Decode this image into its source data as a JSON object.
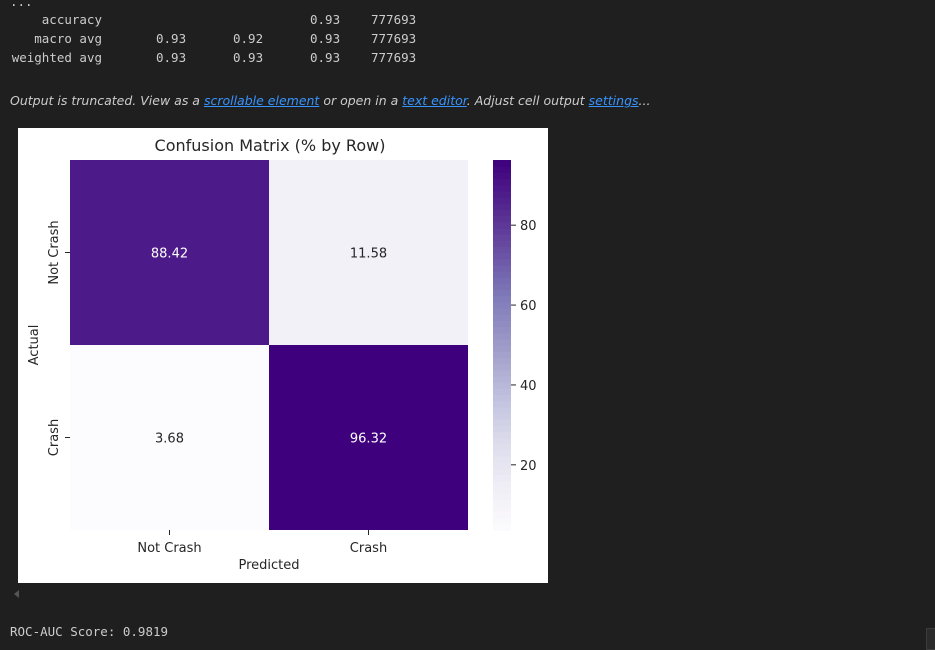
{
  "report": {
    "ellipsis": "...",
    "rows": [
      {
        "label": "accuracy",
        "precision": "",
        "recall": "",
        "f1": "0.93",
        "support": "777693"
      },
      {
        "label": "macro avg",
        "precision": "0.93",
        "recall": "0.92",
        "f1": "0.93",
        "support": "777693"
      },
      {
        "label": "weighted avg",
        "precision": "0.93",
        "recall": "0.93",
        "f1": "0.93",
        "support": "777693"
      }
    ]
  },
  "truncation": {
    "prefix": "Output is truncated. View as a ",
    "link1": "scrollable element",
    "middle": " or open in a ",
    "link2": "text editor",
    "middle2": ". Adjust cell output ",
    "link3": "settings",
    "suffix": "..."
  },
  "chart_data": {
    "type": "heatmap",
    "title": "Confusion Matrix (% by Row)",
    "xlabel": "Predicted",
    "ylabel": "Actual",
    "x_categories": [
      "Not Crash",
      "Crash"
    ],
    "y_categories": [
      "Not Crash",
      "Crash"
    ],
    "values": [
      [
        88.42,
        11.58
      ],
      [
        3.68,
        96.32
      ]
    ],
    "value_labels": [
      [
        "88.42",
        "11.58"
      ],
      [
        "3.68",
        "96.32"
      ]
    ],
    "colormap": "Purples",
    "colorbar": {
      "min": 3.68,
      "max": 96.32,
      "ticks": [
        20,
        40,
        60,
        80
      ]
    },
    "colors": {
      "low": "#fcfbfd",
      "high": "#3f007d"
    }
  },
  "roc": {
    "text": "ROC-AUC Score: 0.9819"
  }
}
